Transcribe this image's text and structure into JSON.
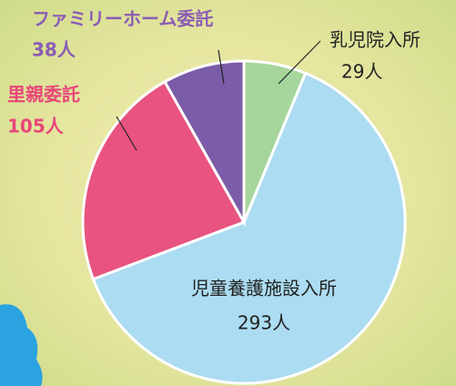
{
  "chart_data": {
    "type": "pie",
    "categories": [
      "乳児院入所",
      "児童養護施設入所",
      "里親委託",
      "ファミリーホーム委託"
    ],
    "values": [
      29,
      293,
      105,
      38
    ],
    "value_labels": [
      "29人",
      "293人",
      "105人",
      "38人"
    ],
    "colors": [
      "#a6d69c",
      "#acdcf1",
      "#e8537f",
      "#7b5ca8"
    ]
  }
}
